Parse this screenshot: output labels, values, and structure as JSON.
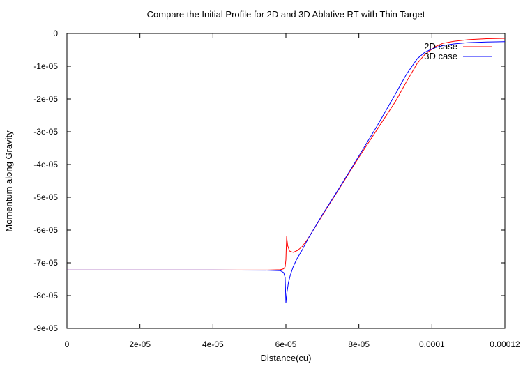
{
  "chart_data": {
    "type": "line",
    "title": "Compare the Initial Profile for 2D and 3D Ablative RT with Thin Target",
    "xlabel": "Distance(cu)",
    "ylabel": "Momentum along Gravity",
    "xlim": [
      0,
      0.00012
    ],
    "ylim": [
      -9e-05,
      0.0
    ],
    "x_ticks": [
      0,
      2e-05,
      4e-05,
      6e-05,
      8e-05,
      0.0001,
      0.00012
    ],
    "x_tick_labels": [
      "0",
      "2e-05",
      "4e-05",
      "6e-05",
      "8e-05",
      "0.0001",
      "0.00012"
    ],
    "y_ticks": [
      0,
      -1e-05,
      -2e-05,
      -3e-05,
      -4e-05,
      -5e-05,
      -6e-05,
      -7e-05,
      -8e-05,
      -9e-05
    ],
    "y_tick_labels": [
      "0",
      "-1e-05",
      "-2e-05",
      "-3e-05",
      "-4e-05",
      "-5e-05",
      "-6e-05",
      "-7e-05",
      "-8e-05",
      "-9e-05"
    ],
    "grid": false,
    "legend_position": "top-right",
    "series": [
      {
        "name": "2D case",
        "color": "#ff0000",
        "x": [
          0,
          2e-05,
          4e-05,
          5.5e-05,
          5.85e-05,
          5.94e-05,
          5.98e-05,
          6e-05,
          6.02e-05,
          6.05e-05,
          6.1e-05,
          6.2e-05,
          6.32e-05,
          6.45e-05,
          6.6e-05,
          7e-05,
          7.5e-05,
          8e-05,
          8.5e-05,
          9e-05,
          9.3e-05,
          9.6e-05,
          9.8e-05,
          9.95e-05,
          0.000101,
          0.000103,
          0.000106,
          0.00011,
          0.000115,
          0.00012
        ],
        "y": [
          -7.22e-05,
          -7.22e-05,
          -7.22e-05,
          -7.222e-05,
          -7.21e-05,
          -7.18e-05,
          -7.12e-05,
          -6.9e-05,
          -6.2e-05,
          -6.48e-05,
          -6.64e-05,
          -6.68e-05,
          -6.62e-05,
          -6.5e-05,
          -6.27e-05,
          -5.55e-05,
          -4.67e-05,
          -3.78e-05,
          -2.93e-05,
          -2.08e-05,
          -1.48e-05,
          -9.1e-06,
          -6.5e-06,
          -5.2e-06,
          -4e-06,
          -3e-06,
          -2.4e-06,
          -1.9e-06,
          -1.6e-06,
          -1.5e-06
        ]
      },
      {
        "name": "3D case",
        "color": "#0000ff",
        "x": [
          0,
          2e-05,
          4e-05,
          5.5e-05,
          5.85e-05,
          5.94e-05,
          5.98e-05,
          6e-05,
          6.03e-05,
          6.07e-05,
          6.12e-05,
          6.2e-05,
          6.3e-05,
          6.45e-05,
          6.6e-05,
          7e-05,
          7.5e-05,
          8e-05,
          8.5e-05,
          9e-05,
          9.3e-05,
          9.6e-05,
          9.8e-05,
          9.95e-05,
          0.000101,
          0.000103,
          0.000106,
          0.00011,
          0.000115,
          0.00012
        ],
        "y": [
          -7.22e-05,
          -7.22e-05,
          -7.22e-05,
          -7.225e-05,
          -7.24e-05,
          -7.3e-05,
          -7.45e-05,
          -8.22e-05,
          -7.9e-05,
          -7.6e-05,
          -7.38e-05,
          -7.12e-05,
          -6.88e-05,
          -6.6e-05,
          -6.28e-05,
          -5.53e-05,
          -4.65e-05,
          -3.74e-05,
          -2.82e-05,
          -1.85e-05,
          -1.25e-05,
          -7.7e-06,
          -5.8e-06,
          -5e-06,
          -4.3e-06,
          -3.7e-06,
          -3.2e-06,
          -2.8e-06,
          -2.6e-06,
          -2.5e-06
        ]
      }
    ]
  }
}
